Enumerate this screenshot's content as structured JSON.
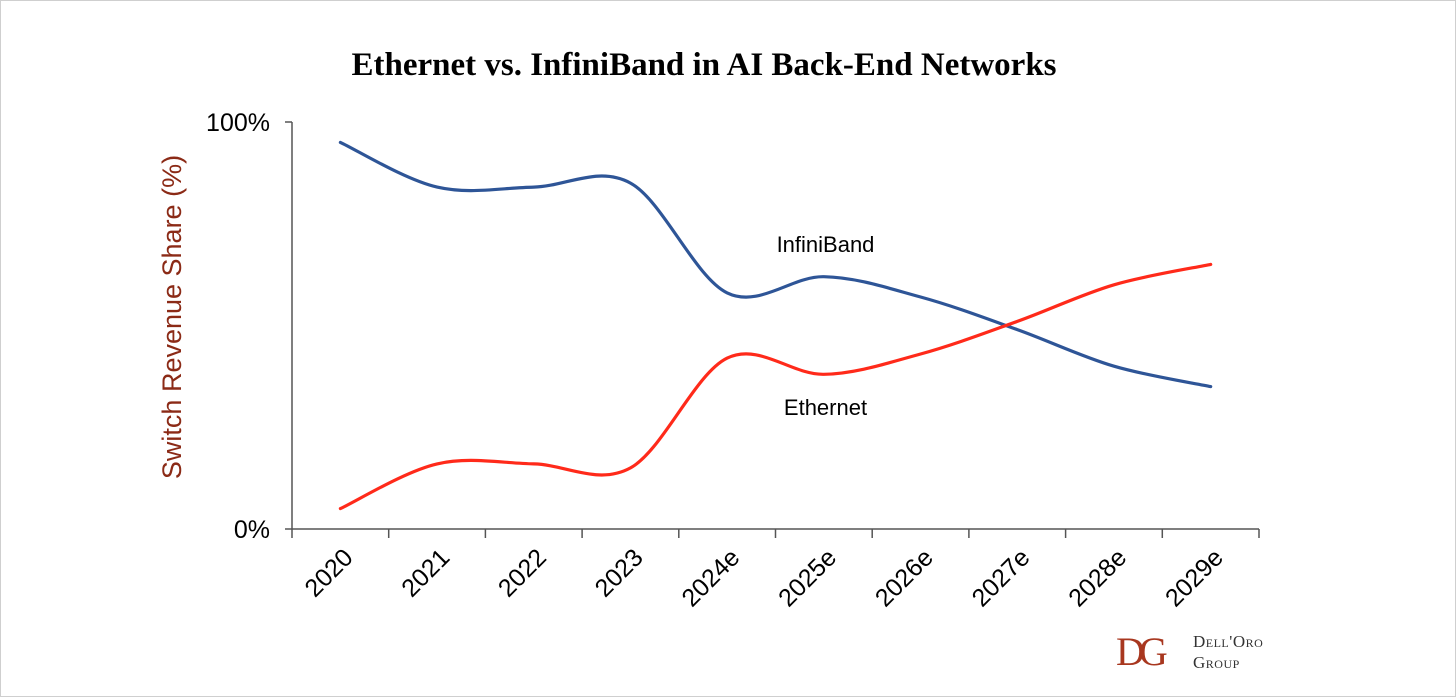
{
  "chart_data": {
    "type": "line",
    "title": "Ethernet vs. InfiniBand in AI Back-End Networks",
    "xlabel": "",
    "ylabel": "Switch Revenue Share (%)",
    "categories": [
      "2020",
      "2021",
      "2022",
      "2023",
      "2024e",
      "2025e",
      "2026e",
      "2027e",
      "2028e",
      "2029e"
    ],
    "ylim": [
      0,
      100
    ],
    "yticks": [
      0,
      100
    ],
    "ytick_labels": [
      "0%",
      "100%"
    ],
    "grid": false,
    "series": [
      {
        "name": "InfiniBand",
        "color": "#2e5597",
        "values": [
          95,
          84,
          84,
          85,
          58,
          62,
          57,
          49,
          40,
          35
        ]
      },
      {
        "name": "Ethernet",
        "color": "#ff2a1a",
        "values": [
          5,
          16,
          16,
          15,
          42,
          38,
          43,
          51,
          60,
          65
        ]
      }
    ]
  },
  "branding": {
    "monogram": "DG",
    "company_line1": "Dell'Oro",
    "company_line2": "Group",
    "color": "#a8371f"
  },
  "colors": {
    "ylabel": "#8b2a16",
    "axis": "#555555"
  }
}
